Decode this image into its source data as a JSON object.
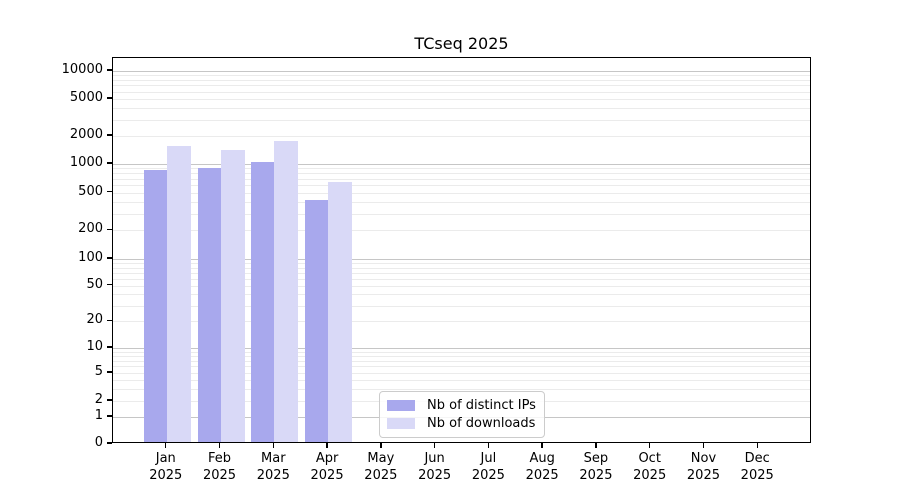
{
  "chart_data": {
    "type": "bar",
    "title": "TCseq 2025",
    "x": {
      "months": [
        "Jan",
        "Feb",
        "Mar",
        "Apr",
        "May",
        "Jun",
        "Jul",
        "Aug",
        "Sep",
        "Oct",
        "Nov",
        "Dec"
      ],
      "year": "2025"
    },
    "series": [
      {
        "name": "Nb of distinct IPs",
        "color": "#a8a8ed",
        "values": [
          870,
          900,
          1050,
          420,
          null,
          null,
          null,
          null,
          null,
          null,
          null,
          null
        ]
      },
      {
        "name": "Nb of downloads",
        "color": "#d9d9f7",
        "values": [
          1560,
          1400,
          1750,
          650,
          null,
          null,
          null,
          null,
          null,
          null,
          null,
          null
        ]
      }
    ],
    "y_axis": {
      "scale": "symlog",
      "tick_labels": [
        "10000",
        "5000",
        "2000",
        "1000",
        "500",
        "200",
        "100",
        "50",
        "20",
        "10",
        "5",
        "2",
        "1",
        "0"
      ],
      "tick_values": [
        10000,
        5000,
        2000,
        1000,
        500,
        200,
        100,
        50,
        20,
        10,
        5,
        2,
        1,
        0
      ],
      "range": [
        0,
        13500
      ]
    },
    "grid": "horizontal major and minor",
    "legend_position": "lower center",
    "colors": {
      "grid_major": "#c6c6c6",
      "grid_minor": "#ebebeb",
      "frame": "#000000"
    }
  }
}
